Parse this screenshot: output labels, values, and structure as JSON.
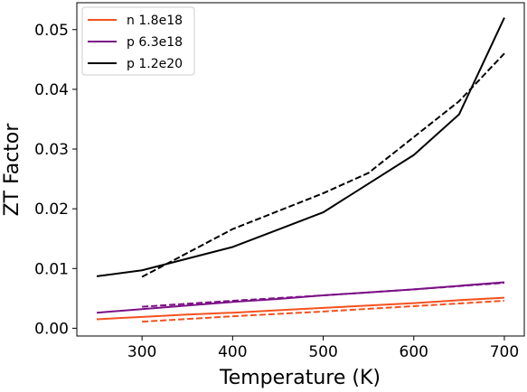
{
  "chart_data": {
    "type": "line",
    "title": "",
    "xlabel": "Temperature (K)",
    "ylabel": "ZT Factor",
    "xlim": [
      228,
      722
    ],
    "ylim": [
      -0.0013,
      0.0545
    ],
    "xticks": [
      300,
      400,
      500,
      600,
      700
    ],
    "xtick_labels": [
      "300",
      "400",
      "500",
      "600",
      "700"
    ],
    "yticks": [
      0.0,
      0.01,
      0.02,
      0.03,
      0.04,
      0.05
    ],
    "ytick_labels": [
      "0.00",
      "0.01",
      "0.02",
      "0.03",
      "0.04",
      "0.05"
    ],
    "grid": false,
    "legend_position": "top-left",
    "series": [
      {
        "name": "n 1.8e18",
        "color": "#f4511e",
        "style": "solid",
        "x": [
          250,
          300,
          350,
          400,
          450,
          500,
          550,
          600,
          650,
          700
        ],
        "y": [
          0.0015,
          0.0019,
          0.0023,
          0.0026,
          0.003,
          0.0034,
          0.0038,
          0.0042,
          0.0047,
          0.0051
        ]
      },
      {
        "name": "",
        "color": "#f4511e",
        "style": "dashed",
        "x": [
          300,
          400,
          500,
          600,
          700
        ],
        "y": [
          0.0011,
          0.002,
          0.0028,
          0.0037,
          0.0046
        ]
      },
      {
        "name": "p 6.3e18",
        "color": "#7b1186",
        "style": "solid",
        "x": [
          250,
          300,
          350,
          400,
          450,
          500,
          550,
          600,
          650,
          700
        ],
        "y": [
          0.0026,
          0.0032,
          0.0038,
          0.0044,
          0.0049,
          0.0055,
          0.006,
          0.0065,
          0.0071,
          0.0077
        ]
      },
      {
        "name": "",
        "color": "#7b1186",
        "style": "dashed",
        "x": [
          300,
          400,
          500,
          600,
          700
        ],
        "y": [
          0.0036,
          0.0046,
          0.0055,
          0.0065,
          0.0076
        ]
      },
      {
        "name": "p 1.2e20",
        "color": "#000000",
        "style": "solid",
        "x": [
          250,
          300,
          400,
          500,
          600,
          650,
          700
        ],
        "y": [
          0.0087,
          0.0097,
          0.0136,
          0.0194,
          0.029,
          0.0358,
          0.052
        ]
      },
      {
        "name": "",
        "color": "#000000",
        "style": "dashed",
        "x": [
          300,
          400,
          500,
          550,
          600,
          650,
          700
        ],
        "y": [
          0.0086,
          0.0166,
          0.0226,
          0.026,
          0.032,
          0.038,
          0.046
        ]
      }
    ]
  }
}
